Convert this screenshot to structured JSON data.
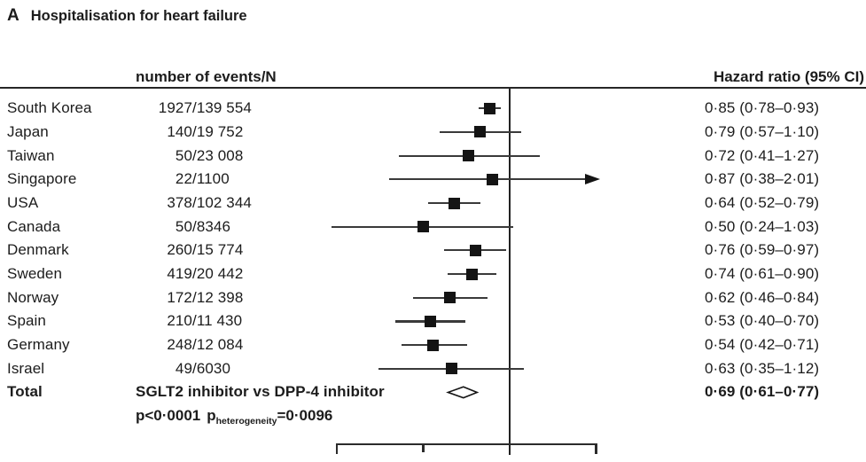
{
  "chart_data": {
    "type": "forest",
    "panel_letter": "A",
    "title": "Hospitalisation for heart failure",
    "col_header_left": "number of events/N",
    "col_header_right": "Hazard ratio (95% CI)",
    "x_axis": {
      "scale": "log",
      "ref_line": 1.0,
      "ticks": [
        0.25,
        0.5,
        1.0,
        2.0
      ],
      "tick_labels_visible": false,
      "xlim": [
        0.25,
        2.0
      ]
    },
    "rows": [
      {
        "country": "South Korea",
        "events_n": "1927/139 554",
        "hr": 0.85,
        "lo": 0.78,
        "hi": 0.93,
        "hr_text": "0·85 (0·78–0·93)"
      },
      {
        "country": "Japan",
        "events_n": "140/19 752",
        "hr": 0.79,
        "lo": 0.57,
        "hi": 1.1,
        "hr_text": "0·79 (0·57–1·10)"
      },
      {
        "country": "Taiwan",
        "events_n": "50/23 008",
        "hr": 0.72,
        "lo": 0.41,
        "hi": 1.27,
        "hr_text": "0·72 (0·41–1·27)"
      },
      {
        "country": "Singapore",
        "events_n": "22/1100",
        "hr": 0.87,
        "lo": 0.38,
        "hi": 2.01,
        "hr_text": "0·87 (0·38–2·01)",
        "ci_clipped_right": true
      },
      {
        "country": "USA",
        "events_n": "378/102 344",
        "hr": 0.64,
        "lo": 0.52,
        "hi": 0.79,
        "hr_text": "0·64 (0·52–0·79)"
      },
      {
        "country": "Canada",
        "events_n": "50/8346",
        "hr": 0.5,
        "lo": 0.24,
        "hi": 1.03,
        "hr_text": "0·50 (0·24–1·03)"
      },
      {
        "country": "Denmark",
        "events_n": "260/15 774",
        "hr": 0.76,
        "lo": 0.59,
        "hi": 0.97,
        "hr_text": "0·76 (0·59–0·97)"
      },
      {
        "country": "Sweden",
        "events_n": "419/20 442",
        "hr": 0.74,
        "lo": 0.61,
        "hi": 0.9,
        "hr_text": "0·74 (0·61–0·90)"
      },
      {
        "country": "Norway",
        "events_n": "172/12 398",
        "hr": 0.62,
        "lo": 0.46,
        "hi": 0.84,
        "hr_text": "0·62 (0·46–0·84)"
      },
      {
        "country": "Spain",
        "events_n": "210/11 430",
        "hr": 0.53,
        "lo": 0.4,
        "hi": 0.7,
        "hr_text": "0·53 (0·40–0·70)"
      },
      {
        "country": "Germany",
        "events_n": "248/12 084",
        "hr": 0.54,
        "lo": 0.42,
        "hi": 0.71,
        "hr_text": "0·54 (0·42–0·71)"
      },
      {
        "country": "Israel",
        "events_n": "49/6030",
        "hr": 0.63,
        "lo": 0.35,
        "hi": 1.12,
        "hr_text": "0·63 (0·35–1·12)"
      }
    ],
    "total": {
      "label": "Total",
      "comparison": "SGLT2 inhibitor vs DPP-4 inhibitor",
      "hr": 0.69,
      "lo": 0.61,
      "hi": 0.77,
      "hr_text": "0·69 (0·61–0·77)",
      "p_text": "p<0·0001",
      "p_het_label": "p",
      "p_het_subscript": "heterogeneity",
      "p_het_value": "=0·0096"
    }
  }
}
